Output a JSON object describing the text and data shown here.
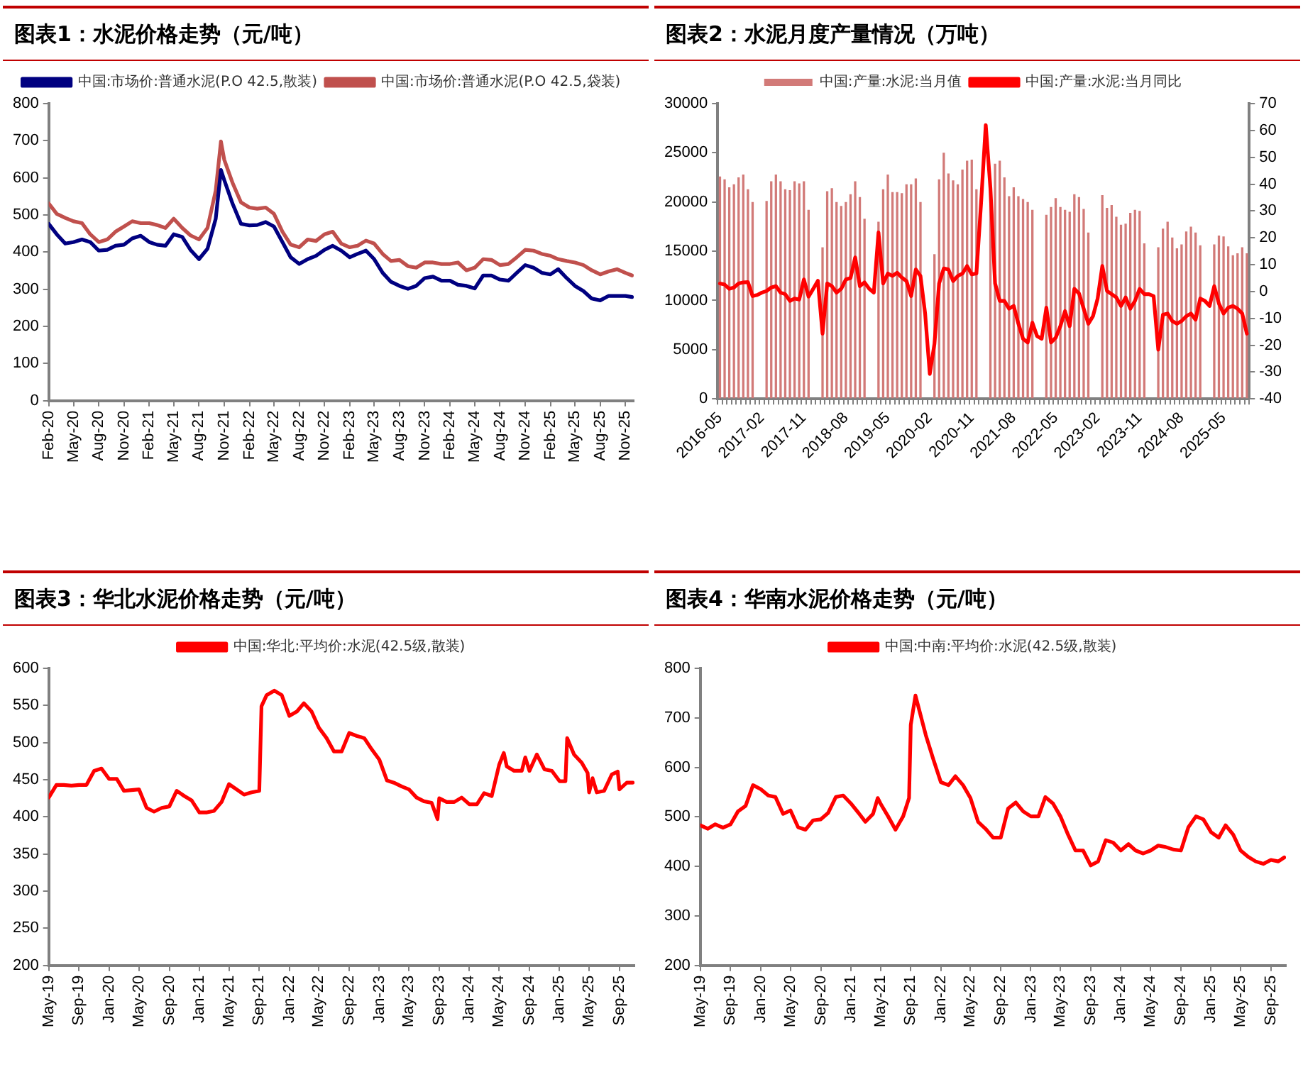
{
  "chart_data": [
    {
      "type": "line",
      "title": "图表1：水泥价格走势（元/吨）",
      "marker": "none",
      "legend": "top",
      "grid": false,
      "x": [
        "2020-02",
        "2020-03",
        "2020-04",
        "2020-05",
        "2020-06",
        "2020-07",
        "2020-08",
        "2020-09",
        "2020-10",
        "2020-11",
        "2020-12",
        "2021-01",
        "2021-02",
        "2021-03",
        "2021-04",
        "2021-05",
        "2021-06",
        "2021-07",
        "2021-08",
        "2021-09",
        "2021-10",
        "2021-10-20",
        "2021-11",
        "2021-12",
        "2022-01",
        "2022-02",
        "2022-03",
        "2022-04",
        "2022-05",
        "2022-06",
        "2022-07",
        "2022-08",
        "2022-09",
        "2022-10",
        "2022-11",
        "2022-12",
        "2023-01",
        "2023-02",
        "2023-03",
        "2023-04",
        "2023-05",
        "2023-06",
        "2023-07",
        "2023-08",
        "2023-09",
        "2023-10",
        "2023-11",
        "2023-12",
        "2024-01",
        "2024-02",
        "2024-03",
        "2024-04",
        "2024-05",
        "2024-06",
        "2024-07",
        "2024-08",
        "2024-09",
        "2024-10",
        "2024-11",
        "2024-12",
        "2025-01",
        "2025-02",
        "2025-03",
        "2025-04",
        "2025-05",
        "2025-06",
        "2025-07",
        "2025-08",
        "2025-09",
        "2025-10",
        "2025-11",
        "2025-11-25"
      ],
      "series": [
        {
          "name": "中国:市场价:普通水泥(P.O 42.5,散装)",
          "color": "#000080",
          "values": [
            476,
            448,
            423,
            427,
            434,
            427,
            404,
            406,
            417,
            420,
            437,
            444,
            427,
            420,
            417,
            448,
            441,
            406,
            381,
            409,
            490,
            621,
            594,
            531,
            476,
            472,
            473,
            481,
            469,
            427,
            386,
            368,
            381,
            390,
            406,
            417,
            404,
            386,
            395,
            404,
            381,
            344,
            320,
            309,
            301,
            309,
            330,
            334,
            323,
            323,
            312,
            309,
            302,
            337,
            337,
            326,
            323,
            344,
            365,
            358,
            344,
            340,
            354,
            330,
            309,
            295,
            275,
            270,
            282,
            282,
            282,
            279
          ]
        },
        {
          "name": "中国:市场价:普通水泥(P.O 42.5,袋装)",
          "color": "#c0504d",
          "values": [
            531,
            503,
            492,
            483,
            478,
            448,
            427,
            434,
            455,
            469,
            483,
            478,
            478,
            473,
            465,
            490,
            465,
            445,
            434,
            465,
            566,
            698,
            649,
            587,
            534,
            520,
            517,
            520,
            503,
            455,
            420,
            413,
            434,
            430,
            448,
            455,
            423,
            413,
            417,
            431,
            423,
            395,
            376,
            379,
            362,
            358,
            372,
            372,
            368,
            368,
            372,
            351,
            358,
            381,
            379,
            365,
            368,
            386,
            406,
            404,
            395,
            390,
            381,
            376,
            372,
            365,
            351,
            340,
            348,
            354,
            344,
            337
          ]
        }
      ],
      "xlim": [
        "2020-02",
        "2025-12"
      ],
      "xticks": [
        {
          "value": "2020-02",
          "label": "Feb-20"
        },
        {
          "value": "2020-05",
          "label": "May-20"
        },
        {
          "value": "2020-08",
          "label": "Aug-20"
        },
        {
          "value": "2020-11",
          "label": "Nov-20"
        },
        {
          "value": "2021-02",
          "label": "Feb-21"
        },
        {
          "value": "2021-05",
          "label": "May-21"
        },
        {
          "value": "2021-08",
          "label": "Aug-21"
        },
        {
          "value": "2021-11",
          "label": "Nov-21"
        },
        {
          "value": "2022-02",
          "label": "Feb-22"
        },
        {
          "value": "2022-05",
          "label": "May-22"
        },
        {
          "value": "2022-08",
          "label": "Aug-22"
        },
        {
          "value": "2022-11",
          "label": "Nov-22"
        },
        {
          "value": "2023-02",
          "label": "Feb-23"
        },
        {
          "value": "2023-05",
          "label": "May-23"
        },
        {
          "value": "2023-08",
          "label": "Aug-23"
        },
        {
          "value": "2023-11",
          "label": "Nov-23"
        },
        {
          "value": "2024-02",
          "label": "Feb-24"
        },
        {
          "value": "2024-05",
          "label": "May-24"
        },
        {
          "value": "2024-08",
          "label": "Aug-24"
        },
        {
          "value": "2024-11",
          "label": "Nov-24"
        },
        {
          "value": "2025-02",
          "label": "Feb-25"
        },
        {
          "value": "2025-05",
          "label": "May-25"
        },
        {
          "value": "2025-08",
          "label": "Aug-25"
        },
        {
          "value": "2025-11",
          "label": "Nov-25"
        }
      ],
      "ylim": [
        0,
        800
      ],
      "yticks": [
        0,
        100,
        200,
        300,
        400,
        500,
        600,
        700,
        800
      ]
    },
    {
      "type": "bar",
      "title": "图表2：水泥月度产量情况（万吨）",
      "marker": "none",
      "legend": "top",
      "grid": false,
      "categories": [
        "2016-05",
        null,
        null,
        null,
        null,
        null,
        null,
        null,
        null,
        "2017-02",
        null,
        null,
        null,
        null,
        null,
        null,
        null,
        null,
        "2017-11",
        null,
        null,
        null,
        null,
        null,
        null,
        null,
        null,
        "2018-08",
        null,
        null,
        null,
        null,
        null,
        null,
        null,
        null,
        "2019-05",
        null,
        null,
        null,
        null,
        null,
        null,
        null,
        null,
        "2020-02",
        null,
        null,
        null,
        null,
        null,
        null,
        null,
        null,
        "2020-11",
        null,
        null,
        null,
        null,
        null,
        null,
        null,
        null,
        "2021-08",
        null,
        null,
        null,
        null,
        null,
        null,
        null,
        null,
        "2022-05",
        null,
        null,
        null,
        null,
        null,
        null,
        null,
        null,
        "2023-02",
        null,
        null,
        null,
        null,
        null,
        null,
        null,
        null,
        "2023-11",
        null,
        null,
        null,
        null,
        null,
        null,
        null,
        null,
        "2024-08",
        null,
        null,
        null,
        null,
        null,
        null,
        null,
        null,
        "2025-05",
        null,
        null,
        null,
        null,
        null
      ],
      "series": [
        {
          "name": "中国:产量:水泥:当月值",
          "color": "#d27a78",
          "values": [
            22600,
            22300,
            21500,
            21800,
            22500,
            22800,
            21300,
            20000,
            null,
            null,
            20100,
            22100,
            22800,
            22100,
            21300,
            21200,
            22100,
            21900,
            22100,
            19200,
            null,
            null,
            15400,
            21100,
            21400,
            20000,
            19600,
            20000,
            20800,
            22100,
            20500,
            18300,
            null,
            null,
            18000,
            21300,
            22800,
            21000,
            21000,
            20900,
            21800,
            21800,
            22400,
            20000,
            null,
            null,
            14700,
            22300,
            25000,
            22900,
            22200,
            21800,
            23300,
            24200,
            24300,
            21300,
            null,
            null,
            21000,
            23900,
            24200,
            22500,
            20600,
            21500,
            20600,
            20300,
            20000,
            19200,
            null,
            null,
            18700,
            19500,
            20400,
            19500,
            19200,
            19000,
            20800,
            20500,
            19300,
            16900,
            null,
            null,
            20700,
            19400,
            19700,
            18500,
            17700,
            17800,
            18900,
            19200,
            19100,
            15800,
            null,
            null,
            15400,
            17300,
            18000,
            16400,
            15300,
            15700,
            17000,
            17500,
            16900,
            15600,
            null,
            null,
            15700,
            16600,
            16500,
            15500,
            14600,
            14800,
            15400,
            14800
          ]
        },
        {
          "name": "中国:产量:水泥:当月同比",
          "type": "line",
          "axis": "y2",
          "color": "#ff0000",
          "values": [
            3,
            2.6,
            1,
            1.5,
            3,
            3.4,
            3.5,
            -1.7,
            -1.3,
            -0.4,
            0.2,
            1.5,
            2,
            -0.4,
            -1,
            -3.5,
            -2.6,
            -3,
            4.5,
            -1.9,
            1,
            4,
            -15.7,
            3,
            2,
            -0.4,
            1,
            4.5,
            5,
            12.7,
            2,
            3.4,
            1,
            -0.4,
            22,
            3,
            6.7,
            5.8,
            7,
            5.2,
            3.9,
            -1.7,
            8.2,
            5.8,
            -8.2,
            -30.7,
            -19.5,
            3,
            8.6,
            8.2,
            3.9,
            5.8,
            6.7,
            9.5,
            6.4,
            6.7,
            33,
            62,
            38.5,
            3,
            -3.5,
            -3.5,
            -6.4,
            -5.4,
            -12,
            -17.6,
            -19,
            -11.6,
            -16.6,
            -17.6,
            -6,
            -19,
            -17.2,
            -12.9,
            -7.3,
            -12.9,
            1,
            -0.7,
            -6.4,
            -12,
            -9.2,
            -2.6,
            9.5,
            0.2,
            -1,
            -2.2,
            -5.4,
            -2.2,
            -6.4,
            -3.5,
            1,
            -1,
            -1,
            -1.7,
            -21.7,
            -8.6,
            -8.2,
            -11,
            -12,
            -11,
            -9.2,
            -8.2,
            -10.5,
            -2.6,
            -3.5,
            -5.4,
            2,
            -4.5,
            -8.2,
            -6,
            -5.4,
            -6.4,
            -8.2,
            -15.7
          ]
        }
      ],
      "ylim": [
        0,
        30000
      ],
      "yticks": [
        0,
        5000,
        10000,
        15000,
        20000,
        25000,
        30000
      ],
      "y2lim": [
        -40,
        70
      ],
      "y2ticks": [
        -40,
        -30,
        -20,
        -10,
        0,
        10,
        20,
        30,
        40,
        50,
        60,
        70
      ]
    },
    {
      "type": "line",
      "title": "图表3：华北水泥价格走势（元/吨）",
      "marker": "none",
      "legend": "top",
      "grid": false,
      "x": [
        "2019-05",
        "2019-06",
        "2019-07",
        "2019-08",
        "2019-09",
        "2019-10",
        "2019-11",
        "2019-12",
        "2020-01",
        "2020-02",
        "2020-03",
        "2020-04",
        "2020-05",
        "2020-06",
        "2020-07",
        "2020-08",
        "2020-09",
        "2020-10",
        "2020-11",
        "2020-12",
        "2021-01",
        "2021-02",
        "2021-03",
        "2021-04",
        "2021-05",
        "2021-06",
        "2021-07",
        "2021-08",
        "2021-09",
        "2021-09-10",
        "2021-10",
        "2021-11",
        "2021-12",
        "2022-01",
        "2022-02",
        "2022-03",
        "2022-04",
        "2022-05",
        "2022-06",
        "2022-07",
        "2022-08",
        "2022-09",
        "2022-10",
        "2022-11",
        "2022-12",
        "2023-01",
        "2023-02",
        "2023-03",
        "2023-04",
        "2023-05",
        "2023-06",
        "2023-07",
        "2023-08",
        "2023-08-25",
        "2023-09",
        "2023-10",
        "2023-11",
        "2023-12",
        "2024-01",
        "2024-02",
        "2024-03",
        "2024-04",
        "2024-05",
        "2024-05-20",
        "2024-06",
        "2024-07",
        "2024-08",
        "2024-08-15",
        "2024-09",
        "2024-10",
        "2024-11",
        "2024-12",
        "2025-01",
        "2025-01-25",
        "2025-02",
        "2025-03",
        "2025-04",
        "2025-04-25",
        "2025-05",
        "2025-05-15",
        "2025-06",
        "2025-07",
        "2025-08",
        "2025-08-25",
        "2025-09",
        "2025-10",
        "2025-10-25"
      ],
      "series": [
        {
          "name": "中国:华北:平均价:水泥(42.5级,散装)",
          "color": "#ff0000",
          "values": [
            426,
            443,
            443,
            442,
            443,
            443,
            462,
            465,
            451,
            451,
            435,
            436,
            437,
            412,
            407,
            412,
            414,
            435,
            428,
            422,
            406,
            406,
            408,
            420,
            444,
            437,
            430,
            433,
            435,
            549,
            564,
            570,
            564,
            536,
            542,
            553,
            542,
            520,
            506,
            488,
            488,
            513,
            509,
            506,
            491,
            477,
            449,
            446,
            441,
            437,
            426,
            421,
            419,
            397,
            425,
            420,
            420,
            426,
            417,
            417,
            432,
            428,
            470,
            486,
            468,
            462,
            462,
            480,
            462,
            484,
            464,
            462,
            448,
            448,
            506,
            484,
            473,
            459,
            433,
            452,
            433,
            435,
            457,
            461,
            437,
            446,
            446
          ]
        }
      ],
      "xlim": [
        "2019-05",
        "2025-11"
      ],
      "xticks": [
        {
          "value": "2019-05",
          "label": "May-19"
        },
        {
          "value": "2019-09",
          "label": "Sep-19"
        },
        {
          "value": "2020-01",
          "label": "Jan-20"
        },
        {
          "value": "2020-05",
          "label": "May-20"
        },
        {
          "value": "2020-09",
          "label": "Sep-20"
        },
        {
          "value": "2021-01",
          "label": "Jan-21"
        },
        {
          "value": "2021-05",
          "label": "May-21"
        },
        {
          "value": "2021-09",
          "label": "Sep-21"
        },
        {
          "value": "2022-01",
          "label": "Jan-22"
        },
        {
          "value": "2022-05",
          "label": "May-22"
        },
        {
          "value": "2022-09",
          "label": "Sep-22"
        },
        {
          "value": "2023-01",
          "label": "Jan-23"
        },
        {
          "value": "2023-05",
          "label": "May-23"
        },
        {
          "value": "2023-09",
          "label": "Sep-23"
        },
        {
          "value": "2024-01",
          "label": "Jan-24"
        },
        {
          "value": "2024-05",
          "label": "May-24"
        },
        {
          "value": "2024-09",
          "label": "Sep-24"
        },
        {
          "value": "2025-01",
          "label": "Jan-25"
        },
        {
          "value": "2025-05",
          "label": "May-25"
        },
        {
          "value": "2025-09",
          "label": "Sep-25"
        }
      ],
      "ylim": [
        200,
        600
      ],
      "yticks": [
        200,
        250,
        300,
        350,
        400,
        450,
        500,
        550,
        600
      ]
    },
    {
      "type": "line",
      "title": "图表4：华南水泥价格走势（元/吨）",
      "marker": "none",
      "legend": "top",
      "grid": false,
      "x": [
        "2019-05",
        "2019-06",
        "2019-07",
        "2019-08",
        "2019-09",
        "2019-10",
        "2019-11",
        "2019-12",
        "2020-01",
        "2020-02",
        "2020-03",
        "2020-04",
        "2020-05",
        "2020-06",
        "2020-07",
        "2020-08",
        "2020-09",
        "2020-10",
        "2020-11",
        "2020-12",
        "2021-01",
        "2021-02",
        "2021-03",
        "2021-04",
        "2021-04-20",
        "2021-05",
        "2021-06",
        "2021-07",
        "2021-08",
        "2021-08-25",
        "2021-09",
        "2021-09-20",
        "2021-10",
        "2021-11",
        "2021-12",
        "2022-01",
        "2022-02",
        "2022-03",
        "2022-04",
        "2022-05",
        "2022-06",
        "2022-07",
        "2022-08",
        "2022-09",
        "2022-10",
        "2022-11",
        "2022-12",
        "2023-01",
        "2023-02",
        "2023-03",
        "2023-04",
        "2023-05",
        "2023-06",
        "2023-07",
        "2023-08",
        "2023-09",
        "2023-10",
        "2023-11",
        "2023-12",
        "2024-01",
        "2024-02",
        "2024-03",
        "2024-04",
        "2024-05",
        "2024-06",
        "2024-07",
        "2024-08",
        "2024-09",
        "2024-10",
        "2024-11",
        "2024-12",
        "2025-01",
        "2025-02",
        "2025-03",
        "2025-04",
        "2025-05",
        "2025-06",
        "2025-07",
        "2025-08",
        "2025-09",
        "2025-10",
        "2025-10-25"
      ],
      "series": [
        {
          "name": "中国:中南:平均价:水泥(42.5级,散装)",
          "color": "#ff0000",
          "values": [
            483,
            476,
            485,
            478,
            485,
            511,
            522,
            564,
            556,
            543,
            540,
            506,
            513,
            479,
            474,
            493,
            495,
            508,
            540,
            543,
            527,
            508,
            490,
            506,
            538,
            527,
            501,
            474,
            501,
            538,
            686,
            745,
            724,
            665,
            617,
            570,
            564,
            582,
            564,
            538,
            490,
            476,
            458,
            458,
            517,
            529,
            511,
            501,
            501,
            540,
            527,
            501,
            464,
            432,
            432,
            402,
            410,
            453,
            448,
            432,
            445,
            432,
            426,
            432,
            442,
            439,
            434,
            432,
            479,
            501,
            495,
            469,
            458,
            483,
            464,
            432,
            419,
            410,
            405,
            413,
            410,
            418
          ]
        }
      ],
      "xlim": [
        "2019-05",
        "2025-11"
      ],
      "xticks": [
        {
          "value": "2019-05",
          "label": "May-19"
        },
        {
          "value": "2019-09",
          "label": "Sep-19"
        },
        {
          "value": "2020-01",
          "label": "Jan-20"
        },
        {
          "value": "2020-05",
          "label": "May-20"
        },
        {
          "value": "2020-09",
          "label": "Sep-20"
        },
        {
          "value": "2021-01",
          "label": "Jan-21"
        },
        {
          "value": "2021-05",
          "label": "May-21"
        },
        {
          "value": "2021-09",
          "label": "Sep-21"
        },
        {
          "value": "2022-01",
          "label": "Jan-22"
        },
        {
          "value": "2022-05",
          "label": "May-22"
        },
        {
          "value": "2022-09",
          "label": "Sep-22"
        },
        {
          "value": "2023-01",
          "label": "Jan-23"
        },
        {
          "value": "2023-05",
          "label": "May-23"
        },
        {
          "value": "2023-09",
          "label": "Sep-23"
        },
        {
          "value": "2024-01",
          "label": "Jan-24"
        },
        {
          "value": "2024-05",
          "label": "May-24"
        },
        {
          "value": "2024-09",
          "label": "Sep-24"
        },
        {
          "value": "2025-01",
          "label": "Jan-25"
        },
        {
          "value": "2025-05",
          "label": "May-25"
        },
        {
          "value": "2025-09",
          "label": "Sep-25"
        }
      ],
      "ylim": [
        200,
        800
      ],
      "yticks": [
        200,
        300,
        400,
        500,
        600,
        700,
        800
      ]
    }
  ]
}
